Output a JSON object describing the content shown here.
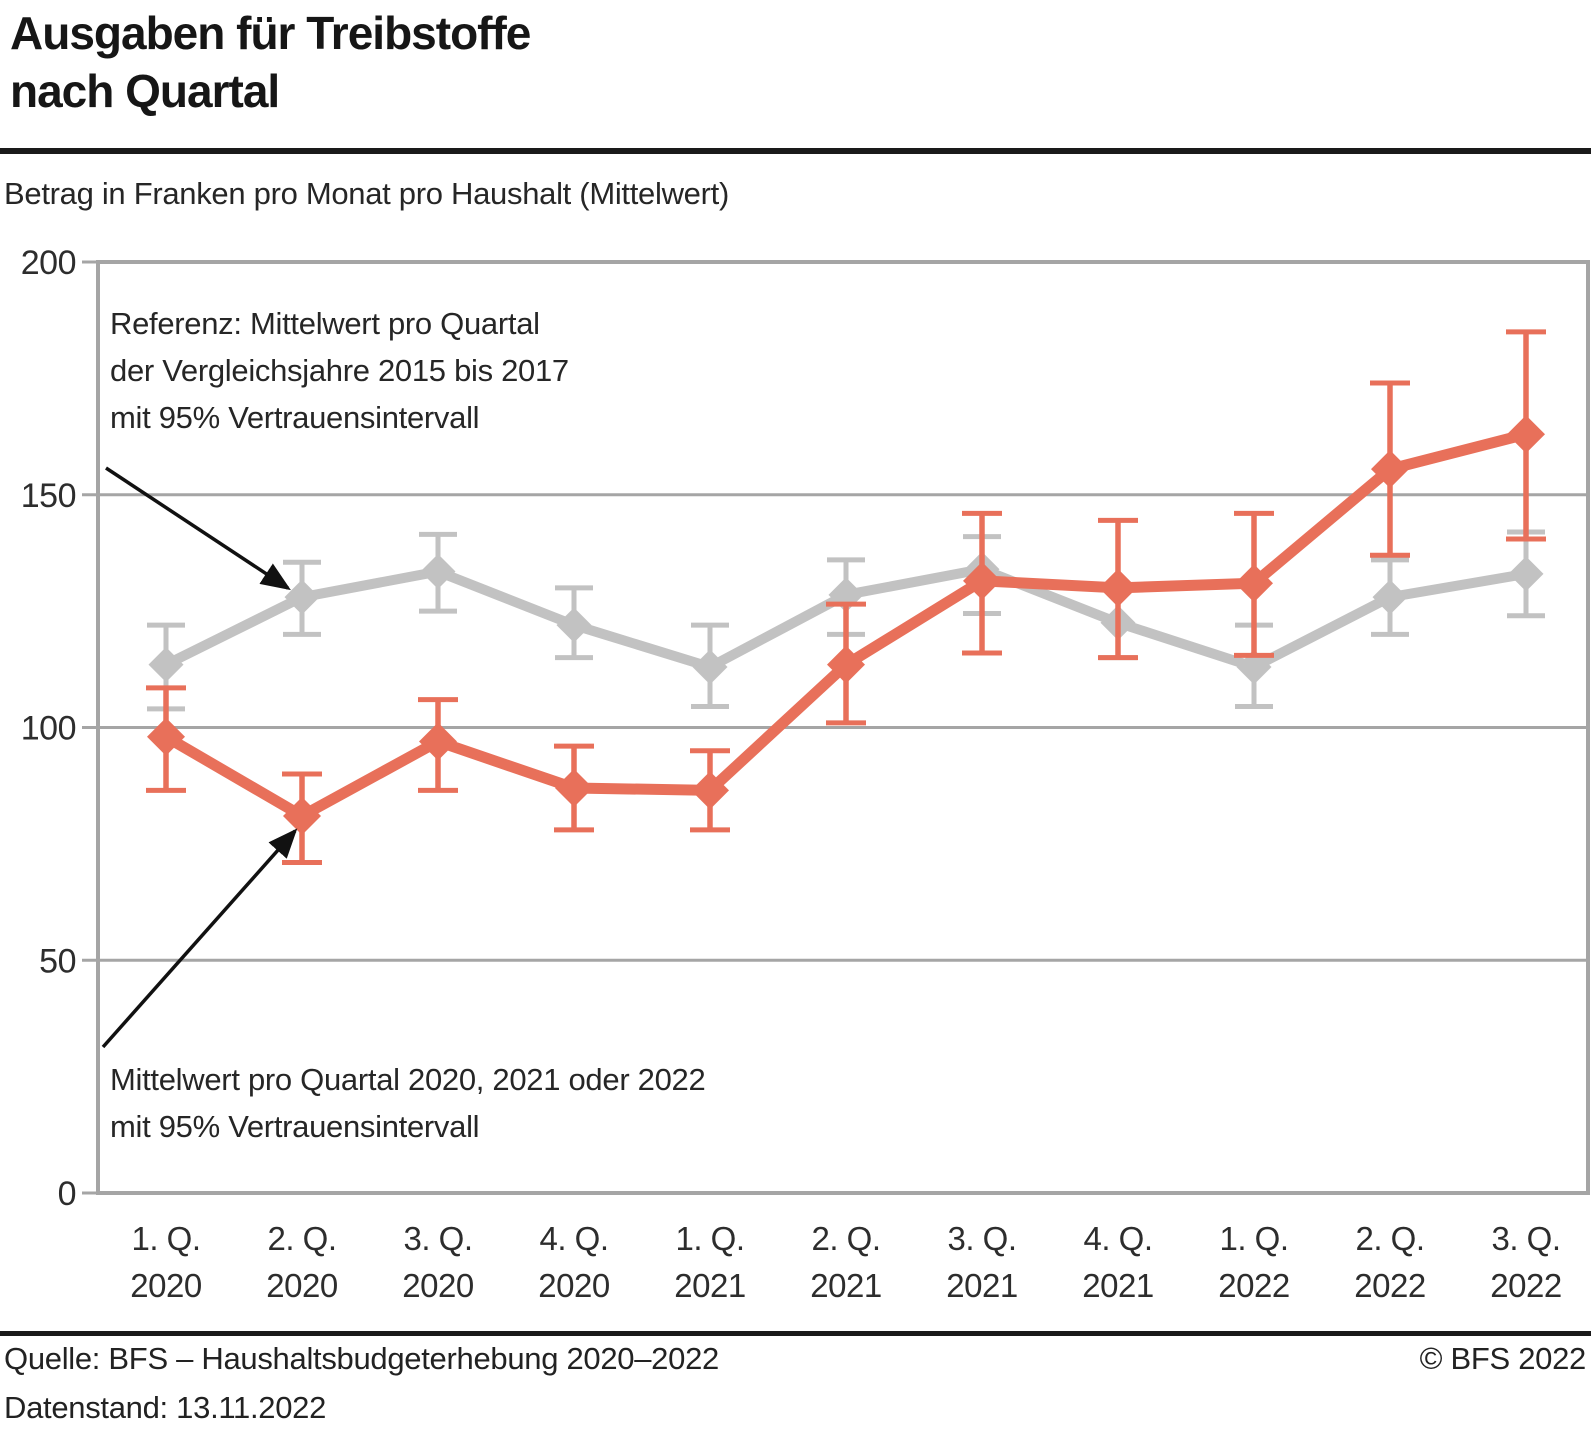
{
  "header": {
    "title_line1": "Ausgaben für Treibstoffe",
    "title_line2": "nach Quartal",
    "subtitle": "Betrag in Franken pro Monat pro Haushalt (Mittelwert)"
  },
  "annotations": {
    "reference_lines": [
      "Referenz: Mittelwert pro Quartal",
      "der Vergleichsjahre 2015 bis 2017",
      "mit 95% Vertrauensintervall"
    ],
    "current_lines": [
      "Mittelwert pro Quartal 2020, 2021 oder 2022",
      "mit 95% Vertrauensintervall"
    ]
  },
  "footer": {
    "source": "Quelle: BFS – Haushaltsbudgeterhebung 2020–2022",
    "copyright": "© BFS 2022",
    "data_status": "Datenstand: 13.11.2022"
  },
  "chart_data": {
    "type": "line",
    "title": "Ausgaben für Treibstoffe nach Quartal",
    "ylabel": "Betrag in Franken pro Monat pro Haushalt (Mittelwert)",
    "ylim": [
      0,
      200
    ],
    "yticks": [
      0,
      50,
      100,
      150,
      200
    ],
    "grid": true,
    "categories": [
      [
        "1. Q.",
        "2020"
      ],
      [
        "2. Q.",
        "2020"
      ],
      [
        "3. Q.",
        "2020"
      ],
      [
        "4. Q.",
        "2020"
      ],
      [
        "1. Q.",
        "2021"
      ],
      [
        "2. Q.",
        "2021"
      ],
      [
        "3. Q.",
        "2021"
      ],
      [
        "4. Q.",
        "2021"
      ],
      [
        "1. Q.",
        "2022"
      ],
      [
        "2. Q.",
        "2022"
      ],
      [
        "3. Q.",
        "2022"
      ]
    ],
    "series": [
      {
        "name": "Referenz: Mittelwert pro Quartal der Vergleichsjahre 2015 bis 2017 mit 95% Vertrauensintervall",
        "color": "#c2c2c2",
        "values": [
          113.5,
          128,
          133.5,
          122,
          113,
          128.5,
          134,
          122.5,
          113,
          128,
          133
        ],
        "ci_high": [
          122,
          135.5,
          141.5,
          130,
          122,
          136,
          141,
          130,
          122,
          136,
          142
        ],
        "ci_low": [
          104,
          120,
          125,
          115,
          104.5,
          120,
          124.5,
          115,
          104.5,
          120,
          124
        ]
      },
      {
        "name": "Mittelwert pro Quartal 2020, 2021 oder 2022 mit 95% Vertrauensintervall",
        "color": "#e8705a",
        "values": [
          98,
          81,
          97,
          87,
          86.5,
          113.5,
          131.5,
          130,
          131,
          155.5,
          163
        ],
        "ci_high": [
          108.5,
          90,
          106,
          96,
          95,
          126.5,
          146,
          144.5,
          146,
          174,
          185
        ],
        "ci_low": [
          86.5,
          71,
          86.5,
          78,
          78,
          101,
          116,
          115,
          115.5,
          137,
          140.5
        ]
      }
    ],
    "axis_color": "#a5a5a5",
    "tick_label_color": "#2d2d2d"
  }
}
